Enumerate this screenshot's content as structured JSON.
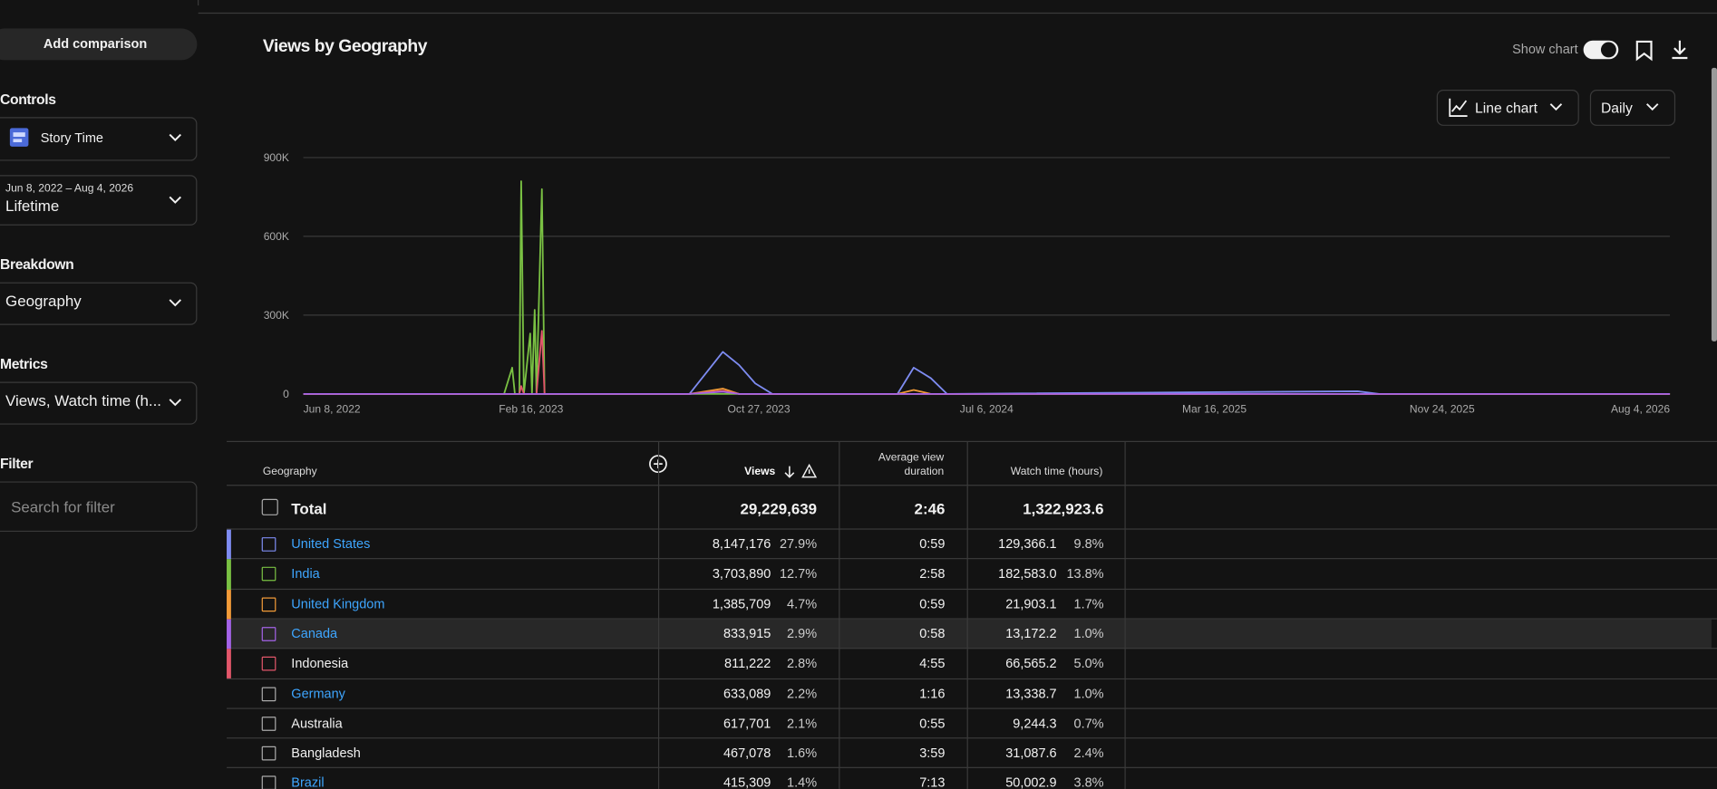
{
  "sidebar": {
    "add_comparison": "Add comparison",
    "controls": "Controls",
    "channel": "Story Time",
    "date_range": "Jun 8, 2022 – Aug 4, 2026",
    "period": "Lifetime",
    "breakdown": "Breakdown",
    "breakdown_value": "Geography",
    "metrics": "Metrics",
    "metrics_value": "Views, Watch time (h...",
    "filter": "Filter",
    "filter_placeholder": "Search for filter"
  },
  "header": {
    "title": "Views by Geography",
    "show_chart": "Show chart",
    "chart_type": "Line chart",
    "interval": "Daily"
  },
  "chart_data": {
    "type": "line",
    "x": [
      "2022-06-08",
      "2023-01-17",
      "2023-01-26",
      "2023-01-29",
      "2023-02-03",
      "2023-02-05",
      "2023-02-08",
      "2023-02-15",
      "2023-02-17",
      "2023-02-20",
      "2023-02-22",
      "2023-02-28",
      "2023-03-03",
      "2023-08-11",
      "2023-09-17",
      "2023-10-05",
      "2023-10-23",
      "2023-11-11",
      "2024-03-29",
      "2024-04-16",
      "2024-05-05",
      "2024-05-23",
      "2025-08-22",
      "2025-09-15",
      "2026-08-04"
    ],
    "xlim": [
      "2022-06-08",
      "2026-08-04"
    ],
    "xticks": [
      {
        "value": "2022-06-08",
        "label": "Jun 8, 2022"
      },
      {
        "value": "2023-02-16",
        "label": "Feb 16, 2023"
      },
      {
        "value": "2023-10-27",
        "label": "Oct 27, 2023"
      },
      {
        "value": "2024-07-06",
        "label": "Jul 6, 2024"
      },
      {
        "value": "2025-03-16",
        "label": "Mar 16, 2025"
      },
      {
        "value": "2025-11-24",
        "label": "Nov 24, 2025"
      },
      {
        "value": "2026-08-04",
        "label": "Aug 4, 2026"
      }
    ],
    "ylim": [
      0,
      900000
    ],
    "yticks": [
      0,
      {
        "value": 300000,
        "label": "300K"
      },
      {
        "value": 600000,
        "label": "600K"
      },
      {
        "value": 900000,
        "label": "900K"
      }
    ],
    "grid": true,
    "series": [
      {
        "name": "United States",
        "color": "#7e8cf2",
        "values": [
          0,
          0,
          0,
          0,
          0,
          0,
          0,
          0,
          0,
          0,
          0,
          0,
          0,
          0,
          160000,
          110000,
          40000,
          0,
          0,
          100000,
          60000,
          0,
          10000,
          0,
          0
        ]
      },
      {
        "name": "India",
        "color": "#7ac143",
        "values": [
          0,
          0,
          100000,
          0,
          0,
          810000,
          0,
          230000,
          0,
          320000,
          0,
          780000,
          0,
          0,
          0,
          0,
          0,
          0,
          0,
          0,
          0,
          0,
          0,
          0,
          0
        ]
      },
      {
        "name": "United Kingdom",
        "color": "#f29b38",
        "values": [
          0,
          0,
          0,
          0,
          0,
          0,
          0,
          0,
          0,
          0,
          0,
          0,
          0,
          0,
          20000,
          0,
          0,
          0,
          0,
          15000,
          0,
          0,
          0,
          0,
          0
        ]
      },
      {
        "name": "Canada",
        "color": "#a463e8",
        "values": [
          0,
          0,
          0,
          0,
          0,
          0,
          0,
          0,
          0,
          0,
          0,
          0,
          0,
          0,
          8000,
          0,
          0,
          0,
          0,
          0,
          0,
          0,
          0,
          0,
          0
        ]
      },
      {
        "name": "Indonesia",
        "color": "#e2566a",
        "values": [
          0,
          0,
          0,
          0,
          0,
          30000,
          0,
          0,
          0,
          0,
          0,
          240000,
          0,
          0,
          12000,
          0,
          0,
          0,
          0,
          0,
          0,
          0,
          0,
          0,
          0
        ]
      }
    ]
  },
  "table": {
    "columns": [
      "Geography",
      "Views",
      "Average view duration",
      "Watch time (hours)"
    ],
    "total": {
      "label": "Total",
      "views": "29,229,639",
      "avd": "2:46",
      "watch": "1,322,923.6"
    },
    "rows": [
      {
        "views": "8,147,176",
        "views_share": "27.9%",
        "avd": "0:59",
        "watch": "129,366.1",
        "watch_share": "9.8%",
        "link": true
      },
      {
        "views": "3,703,890",
        "views_share": "12.7%",
        "avd": "2:58",
        "watch": "182,583.0",
        "watch_share": "13.8%",
        "link": true
      },
      {
        "views": "1,385,709",
        "views_share": "4.7%",
        "avd": "0:59",
        "watch": "21,903.1",
        "watch_share": "1.7%",
        "link": true
      },
      {
        "views": "833,915",
        "views_share": "2.9%",
        "avd": "0:58",
        "watch": "13,172.2",
        "watch_share": "1.0%",
        "link": true,
        "highlighted": true
      },
      {
        "views": "811,222",
        "views_share": "2.8%",
        "avd": "4:55",
        "watch": "66,565.2",
        "watch_share": "5.0%",
        "link": false
      },
      {
        "name": "Germany",
        "views": "633,089",
        "views_share": "2.2%",
        "avd": "1:16",
        "watch": "13,338.7",
        "watch_share": "1.0%",
        "link": true
      },
      {
        "name": "Australia",
        "views": "617,701",
        "views_share": "2.1%",
        "avd": "0:55",
        "watch": "9,244.3",
        "watch_share": "0.7%",
        "link": false
      },
      {
        "name": "Bangladesh",
        "views": "467,078",
        "views_share": "1.6%",
        "avd": "3:59",
        "watch": "31,087.6",
        "watch_share": "2.4%",
        "link": false
      },
      {
        "name": "Brazil",
        "views": "415,309",
        "views_share": "1.4%",
        "avd": "7:13",
        "watch": "50,002.9",
        "watch_share": "3.8%",
        "link": true
      }
    ]
  }
}
